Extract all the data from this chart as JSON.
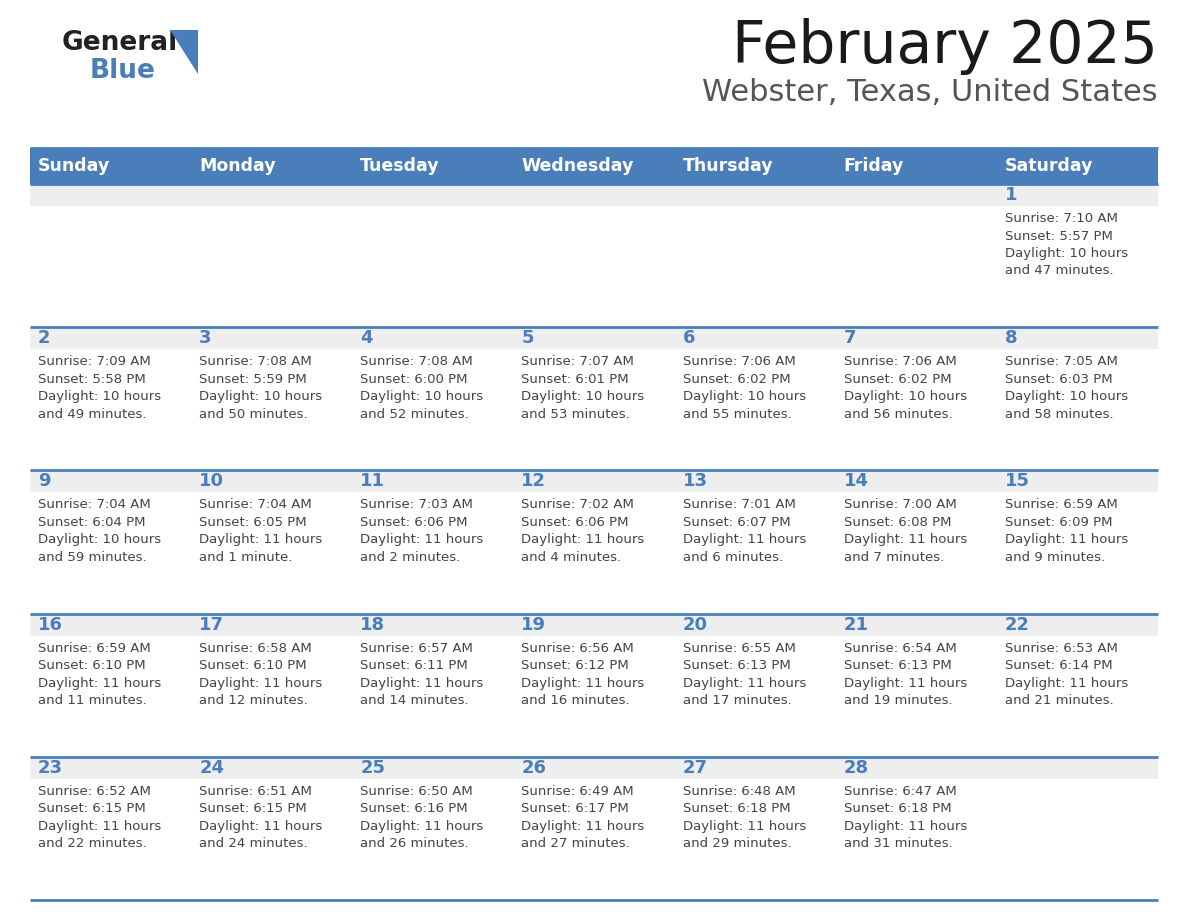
{
  "title": "February 2025",
  "subtitle": "Webster, Texas, United States",
  "days_of_week": [
    "Sunday",
    "Monday",
    "Tuesday",
    "Wednesday",
    "Thursday",
    "Friday",
    "Saturday"
  ],
  "header_bg": "#4A7EBB",
  "header_text": "#FFFFFF",
  "cell_bg_light": "#EEEEEE",
  "cell_bg_white": "#FFFFFF",
  "day_number_color": "#4A7EBB",
  "text_color": "#444444",
  "border_color": "#4A7EBB",
  "logo_general_color": "#222222",
  "logo_blue_color": "#4A7EBB",
  "calendar_data": [
    {
      "day": 1,
      "col": 6,
      "row": 0,
      "sunrise": "7:10 AM",
      "sunset": "5:57 PM",
      "daylight": "10 hours and 47 minutes."
    },
    {
      "day": 2,
      "col": 0,
      "row": 1,
      "sunrise": "7:09 AM",
      "sunset": "5:58 PM",
      "daylight": "10 hours and 49 minutes."
    },
    {
      "day": 3,
      "col": 1,
      "row": 1,
      "sunrise": "7:08 AM",
      "sunset": "5:59 PM",
      "daylight": "10 hours and 50 minutes."
    },
    {
      "day": 4,
      "col": 2,
      "row": 1,
      "sunrise": "7:08 AM",
      "sunset": "6:00 PM",
      "daylight": "10 hours and 52 minutes."
    },
    {
      "day": 5,
      "col": 3,
      "row": 1,
      "sunrise": "7:07 AM",
      "sunset": "6:01 PM",
      "daylight": "10 hours and 53 minutes."
    },
    {
      "day": 6,
      "col": 4,
      "row": 1,
      "sunrise": "7:06 AM",
      "sunset": "6:02 PM",
      "daylight": "10 hours and 55 minutes."
    },
    {
      "day": 7,
      "col": 5,
      "row": 1,
      "sunrise": "7:06 AM",
      "sunset": "6:02 PM",
      "daylight": "10 hours and 56 minutes."
    },
    {
      "day": 8,
      "col": 6,
      "row": 1,
      "sunrise": "7:05 AM",
      "sunset": "6:03 PM",
      "daylight": "10 hours and 58 minutes."
    },
    {
      "day": 9,
      "col": 0,
      "row": 2,
      "sunrise": "7:04 AM",
      "sunset": "6:04 PM",
      "daylight": "10 hours and 59 minutes."
    },
    {
      "day": 10,
      "col": 1,
      "row": 2,
      "sunrise": "7:04 AM",
      "sunset": "6:05 PM",
      "daylight": "11 hours and 1 minute."
    },
    {
      "day": 11,
      "col": 2,
      "row": 2,
      "sunrise": "7:03 AM",
      "sunset": "6:06 PM",
      "daylight": "11 hours and 2 minutes."
    },
    {
      "day": 12,
      "col": 3,
      "row": 2,
      "sunrise": "7:02 AM",
      "sunset": "6:06 PM",
      "daylight": "11 hours and 4 minutes."
    },
    {
      "day": 13,
      "col": 4,
      "row": 2,
      "sunrise": "7:01 AM",
      "sunset": "6:07 PM",
      "daylight": "11 hours and 6 minutes."
    },
    {
      "day": 14,
      "col": 5,
      "row": 2,
      "sunrise": "7:00 AM",
      "sunset": "6:08 PM",
      "daylight": "11 hours and 7 minutes."
    },
    {
      "day": 15,
      "col": 6,
      "row": 2,
      "sunrise": "6:59 AM",
      "sunset": "6:09 PM",
      "daylight": "11 hours and 9 minutes."
    },
    {
      "day": 16,
      "col": 0,
      "row": 3,
      "sunrise": "6:59 AM",
      "sunset": "6:10 PM",
      "daylight": "11 hours and 11 minutes."
    },
    {
      "day": 17,
      "col": 1,
      "row": 3,
      "sunrise": "6:58 AM",
      "sunset": "6:10 PM",
      "daylight": "11 hours and 12 minutes."
    },
    {
      "day": 18,
      "col": 2,
      "row": 3,
      "sunrise": "6:57 AM",
      "sunset": "6:11 PM",
      "daylight": "11 hours and 14 minutes."
    },
    {
      "day": 19,
      "col": 3,
      "row": 3,
      "sunrise": "6:56 AM",
      "sunset": "6:12 PM",
      "daylight": "11 hours and 16 minutes."
    },
    {
      "day": 20,
      "col": 4,
      "row": 3,
      "sunrise": "6:55 AM",
      "sunset": "6:13 PM",
      "daylight": "11 hours and 17 minutes."
    },
    {
      "day": 21,
      "col": 5,
      "row": 3,
      "sunrise": "6:54 AM",
      "sunset": "6:13 PM",
      "daylight": "11 hours and 19 minutes."
    },
    {
      "day": 22,
      "col": 6,
      "row": 3,
      "sunrise": "6:53 AM",
      "sunset": "6:14 PM",
      "daylight": "11 hours and 21 minutes."
    },
    {
      "day": 23,
      "col": 0,
      "row": 4,
      "sunrise": "6:52 AM",
      "sunset": "6:15 PM",
      "daylight": "11 hours and 22 minutes."
    },
    {
      "day": 24,
      "col": 1,
      "row": 4,
      "sunrise": "6:51 AM",
      "sunset": "6:15 PM",
      "daylight": "11 hours and 24 minutes."
    },
    {
      "day": 25,
      "col": 2,
      "row": 4,
      "sunrise": "6:50 AM",
      "sunset": "6:16 PM",
      "daylight": "11 hours and 26 minutes."
    },
    {
      "day": 26,
      "col": 3,
      "row": 4,
      "sunrise": "6:49 AM",
      "sunset": "6:17 PM",
      "daylight": "11 hours and 27 minutes."
    },
    {
      "day": 27,
      "col": 4,
      "row": 4,
      "sunrise": "6:48 AM",
      "sunset": "6:18 PM",
      "daylight": "11 hours and 29 minutes."
    },
    {
      "day": 28,
      "col": 5,
      "row": 4,
      "sunrise": "6:47 AM",
      "sunset": "6:18 PM",
      "daylight": "11 hours and 31 minutes."
    }
  ],
  "num_rows": 5,
  "num_cols": 7
}
